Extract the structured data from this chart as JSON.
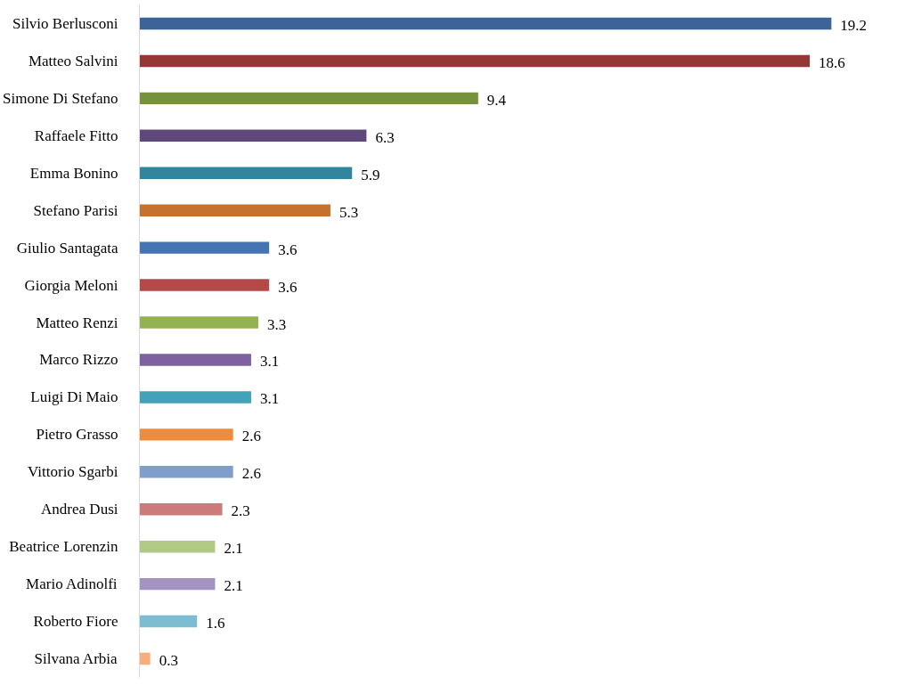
{
  "chart_data": {
    "type": "bar",
    "orientation": "horizontal",
    "data_labels": true,
    "grid": false,
    "tick_labels": "y",
    "categories": [
      "Silvio Berlusconi",
      "Matteo Salvini",
      "Simone Di Stefano",
      "Raffaele Fitto",
      "Emma Bonino",
      "Stefano Parisi",
      "Giulio Santagata",
      "Giorgia Meloni",
      "Matteo Renzi",
      "Marco Rizzo",
      "Luigi Di Maio",
      "Pietro Grasso",
      "Vittorio Sgarbi",
      "Andrea Dusi",
      "Beatrice Lorenzin",
      "Mario Adinolfi",
      "Roberto Fiore",
      "Silvana Arbia"
    ],
    "values": [
      19.2,
      18.6,
      9.4,
      6.3,
      5.9,
      5.3,
      3.6,
      3.6,
      3.3,
      3.1,
      3.1,
      2.6,
      2.6,
      2.3,
      2.1,
      2.1,
      1.6,
      0.3
    ],
    "colors": [
      "#3c6496",
      "#953735",
      "#76923c",
      "#5f497a",
      "#31859c",
      "#c4722f",
      "#4673b2",
      "#b44a48",
      "#93b353",
      "#7e61a1",
      "#41a2b8",
      "#ec8c3e",
      "#7f9dcd",
      "#cd7b7a",
      "#b0c985",
      "#a393c0",
      "#7cbdd1",
      "#f8ae7c"
    ]
  }
}
